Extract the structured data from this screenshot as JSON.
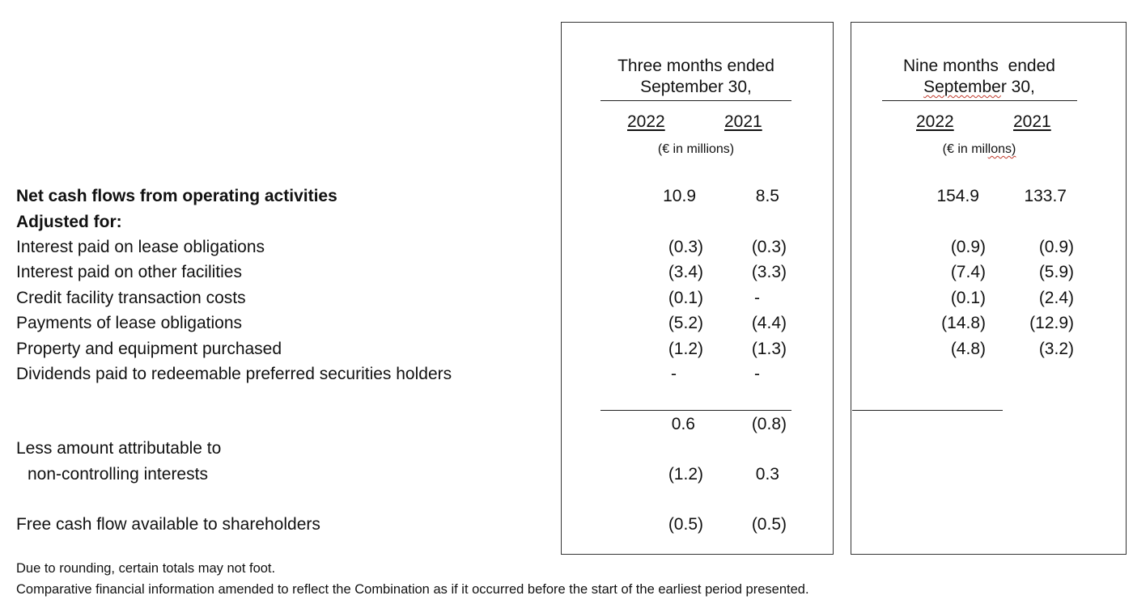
{
  "headers": {
    "three_months": {
      "line1": "Three months ended",
      "line2": "September 30,",
      "year1": "2022",
      "year2": "2021",
      "unit": "(€ in millions)"
    },
    "nine_months": {
      "line1": "Nine months  ended",
      "line2a": "Septembe",
      "line2b": "r 30,",
      "year1": "2022",
      "year2": "2021",
      "unit_a": "(€ in mil",
      "unit_b": "lons)"
    }
  },
  "rows": [
    {
      "label": "Net cash flows from operating activities",
      "q2022": "10.9",
      "q2021": "8.5",
      "n2022": "154.9",
      "n2021": "133.7"
    },
    {
      "label": "Adjusted for:"
    },
    {
      "label": "Interest paid on lease obligations",
      "q2022": "(0.3)",
      "q2021": "(0.3)",
      "n2022": "(0.9)",
      "n2021": "(0.9)"
    },
    {
      "label": "Interest paid on other facilities",
      "q2022": "(3.4)",
      "q2021": "(3.3)",
      "n2022": "(7.4)",
      "n2021": "(5.9)"
    },
    {
      "label": "Credit facility transaction costs",
      "q2022": "(0.1)",
      "q2021": "-",
      "n2022": "(0.1)",
      "n2021": "(2.4)"
    },
    {
      "label": "Payments of lease obligations",
      "q2022": "(5.2)",
      "q2021": "(4.4)",
      "n2022": "(14.8)",
      "n2021": "(12.9)"
    },
    {
      "label": "Property and equipment purchased",
      "q2022": "(1.2)",
      "q2021": "(1.3)",
      "n2022": "(4.8)",
      "n2021": "(3.2)"
    },
    {
      "label": "Dividends paid to redeemable preferred securities holders",
      "q2022": "-",
      "q2021": "-"
    }
  ],
  "subtotal": {
    "q2022": "0.6",
    "q2021": "(0.8)"
  },
  "less": {
    "label1": "Less amount attributable to",
    "label2": "non-controlling interests",
    "q2022": "(1.2)",
    "q2021": "0.3"
  },
  "free_cash_flow": {
    "label": "Free cash flow available to shareholders",
    "q2022": "(0.5)",
    "q2021": "(0.5)"
  },
  "footnotes": [
    "Due to rounding, certain totals may not foot.",
    "Comparative financial information amended to reflect the Combination as if it occurred before the start of the earliest period presented."
  ]
}
